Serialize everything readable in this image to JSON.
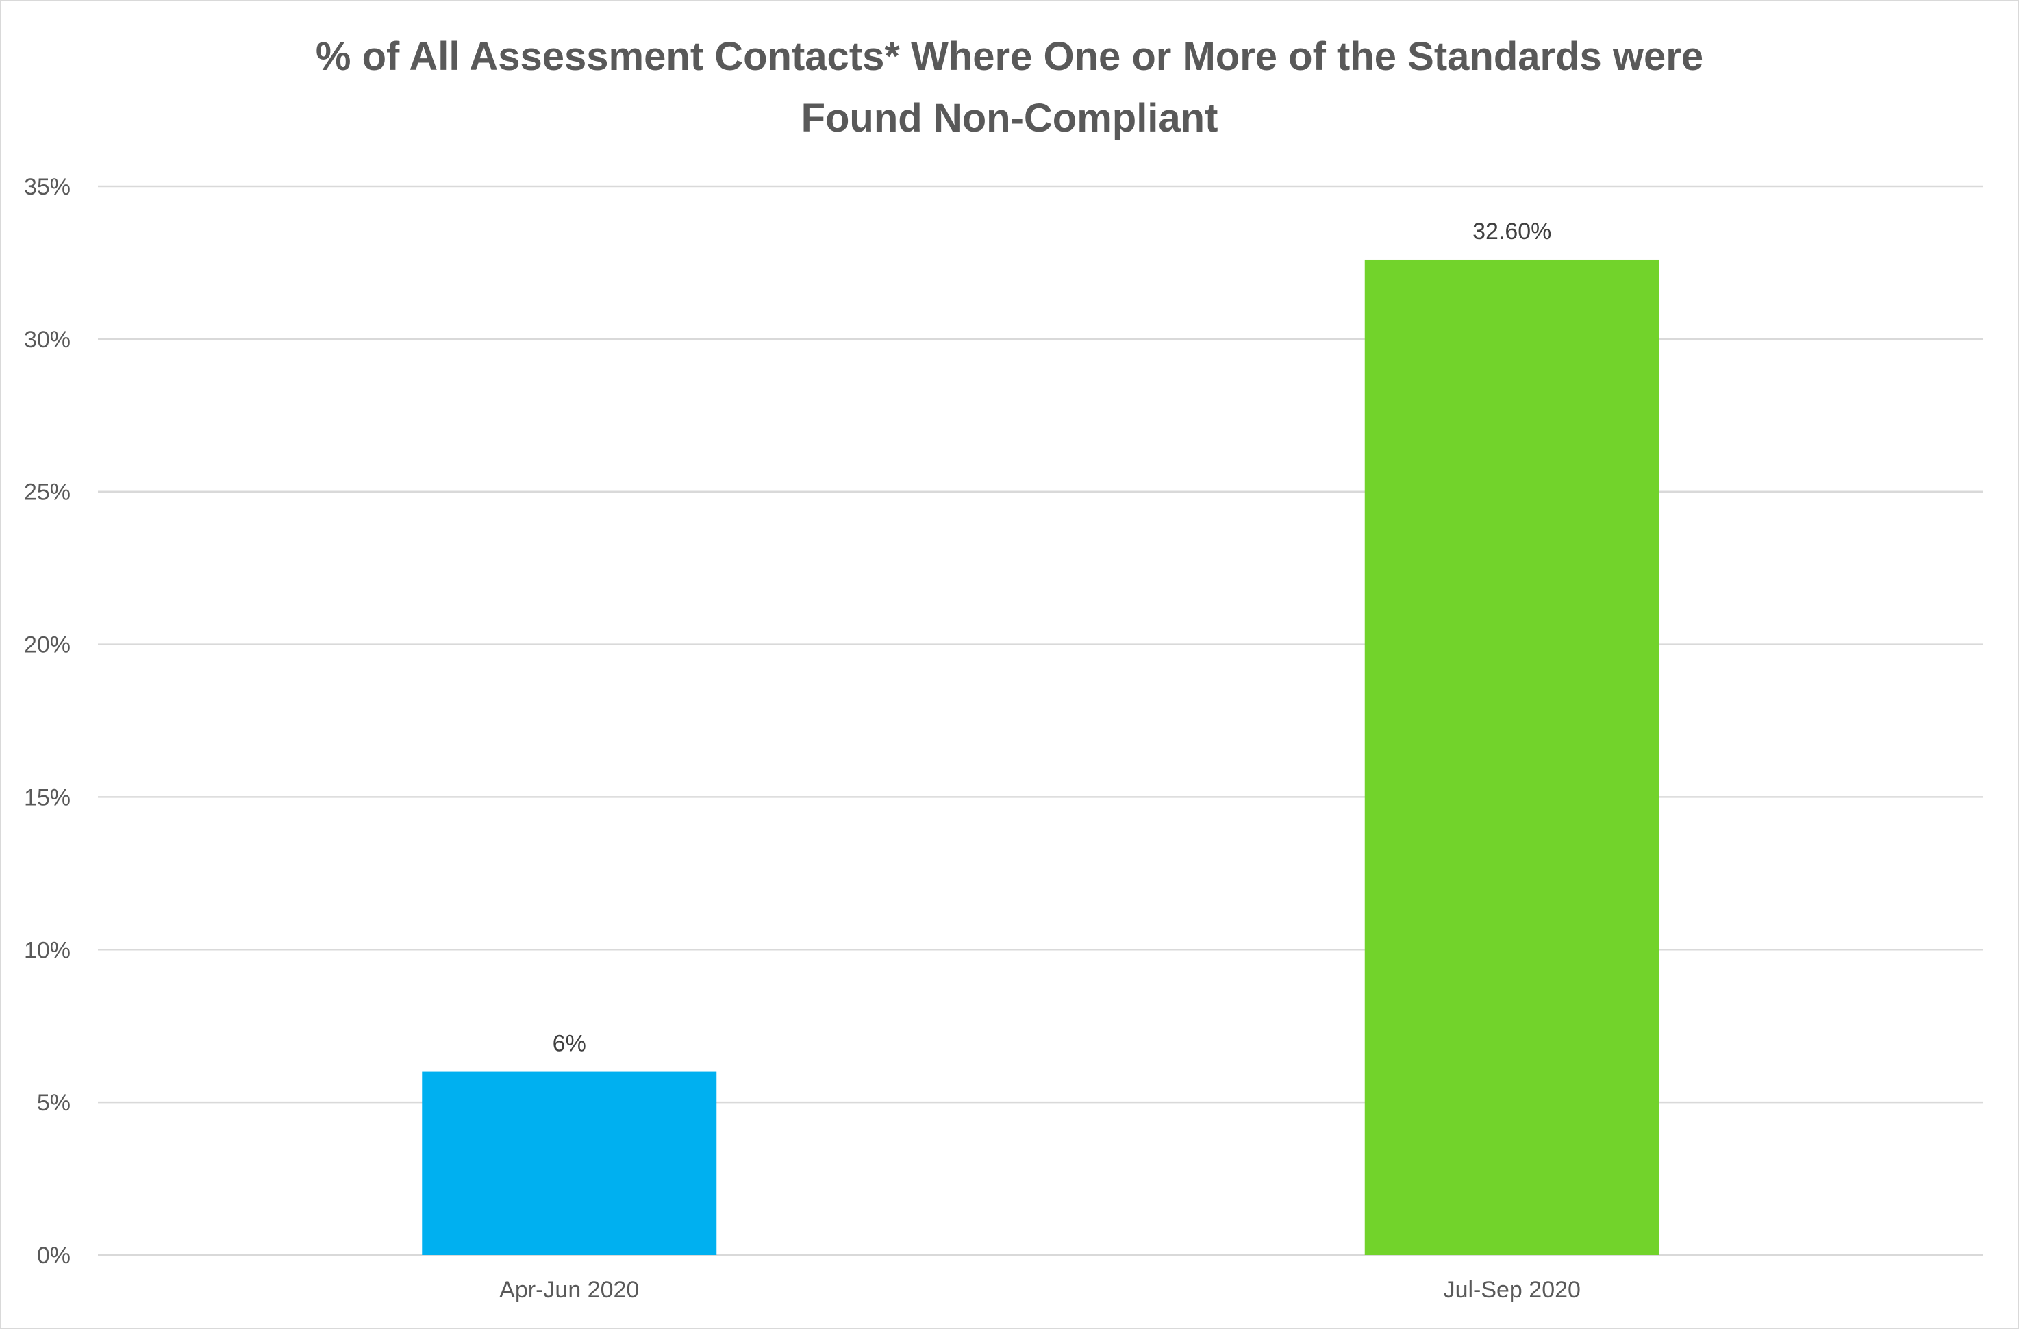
{
  "chart_data": {
    "type": "bar",
    "title_lines": [
      "% of All Assessment Contacts* Where One or More of the Standards were",
      "Found Non-Compliant"
    ],
    "categories": [
      "Apr-Jun 2020",
      "Jul-Sep 2020"
    ],
    "values": [
      6,
      32.6
    ],
    "data_labels": [
      "6%",
      "32.60%"
    ],
    "bar_colors": [
      "#00b0f0",
      "#72d32b"
    ],
    "ylim": [
      0,
      35
    ],
    "y_ticks": [
      0,
      5,
      10,
      15,
      20,
      25,
      30,
      35
    ],
    "y_tick_labels": [
      "0%",
      "5%",
      "10%",
      "15%",
      "20%",
      "25%",
      "30%",
      "35%"
    ],
    "grid": true,
    "legend": "none"
  }
}
